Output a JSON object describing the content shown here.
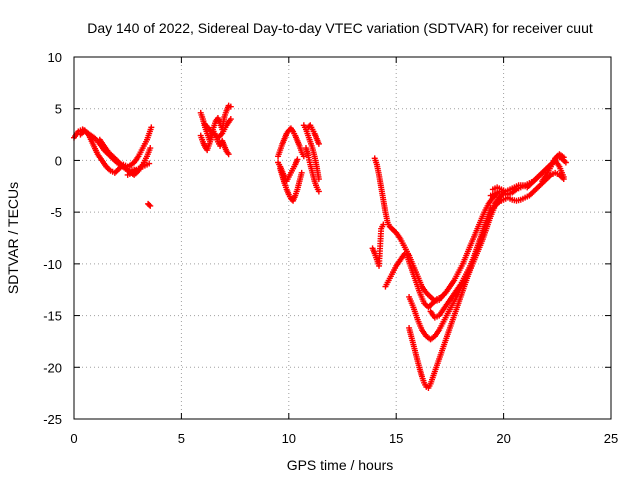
{
  "chart_data": {
    "type": "scatter",
    "title": "Day 140 of 2022, Sidereal Day-to-day VTEC variation (SDTVAR) for receiver cuut",
    "xlabel": "GPS time / hours",
    "ylabel": "SDTVAR / TECUs",
    "xlim": [
      0,
      25
    ],
    "ylim": [
      -25,
      10
    ],
    "xticks": [
      0,
      5,
      10,
      15,
      20,
      25
    ],
    "yticks": [
      -25,
      -20,
      -15,
      -10,
      -5,
      0,
      5,
      10
    ],
    "xtick_labels": [
      "0",
      "5",
      "10",
      "15",
      "20",
      "25"
    ],
    "ytick_labels": [
      "-25",
      "-20",
      "-15",
      "-10",
      "-5",
      "0",
      "5",
      "10"
    ],
    "grid": true,
    "legend": "none",
    "marker": "plus",
    "colors": {
      "series": "#ff0000",
      "grid": "#a0a0a0",
      "axes": "#000000"
    },
    "series": [
      {
        "x": [
          0.0,
          0.2,
          0.4,
          0.6,
          0.8,
          1.0,
          1.2,
          1.4,
          1.6,
          1.8,
          2.0,
          2.2,
          2.4,
          2.6,
          2.8
        ],
        "y": [
          2.2,
          2.8,
          3.0,
          2.7,
          2.4,
          2.1,
          1.6,
          1.0,
          0.6,
          0.2,
          -0.2,
          -0.5,
          -0.8,
          -1.0,
          -0.9
        ]
      },
      {
        "x": [
          0.3,
          0.5,
          0.7,
          0.9,
          1.1,
          1.3,
          1.5,
          1.7,
          1.9,
          2.1,
          2.3,
          2.5
        ],
        "y": [
          2.5,
          2.9,
          2.4,
          1.5,
          0.6,
          0.0,
          -0.6,
          -1.0,
          -1.2,
          -0.8,
          -0.4,
          -0.6
        ]
      },
      {
        "x": [
          1.2,
          1.4,
          1.6,
          1.8,
          2.0,
          2.2,
          2.4,
          2.6,
          2.8,
          3.0,
          3.2,
          3.4,
          3.55
        ],
        "y": [
          2.0,
          1.4,
          0.8,
          0.4,
          0.0,
          -0.4,
          -0.8,
          -1.1,
          -1.4,
          -1.0,
          -0.4,
          0.4,
          1.2
        ]
      },
      {
        "x": [
          2.6,
          2.8,
          3.0,
          3.2,
          3.4,
          3.5,
          3.6
        ],
        "y": [
          -0.5,
          -0.2,
          0.4,
          1.2,
          2.0,
          2.6,
          3.2
        ]
      },
      {
        "x": [
          2.5,
          2.7,
          2.9,
          3.1,
          3.3,
          3.5
        ],
        "y": [
          -1.4,
          -1.2,
          -0.9,
          -0.7,
          -0.5,
          -0.3
        ]
      },
      {
        "x": [
          3.45,
          3.55
        ],
        "y": [
          -4.2,
          -4.4
        ]
      },
      {
        "x": [
          5.9,
          6.0,
          6.1,
          6.2,
          6.3,
          6.4,
          6.5,
          6.6,
          6.7,
          6.8,
          6.9,
          7.0,
          7.1,
          7.2,
          7.3
        ],
        "y": [
          4.6,
          4.0,
          3.2,
          2.6,
          2.0,
          2.6,
          3.2,
          3.8,
          4.1,
          3.6,
          3.0,
          4.2,
          4.8,
          5.3,
          5.2
        ]
      },
      {
        "x": [
          5.9,
          6.0,
          6.1,
          6.2,
          6.3,
          6.4,
          6.5,
          6.6,
          6.7,
          6.8,
          6.9,
          7.0,
          7.1,
          7.2
        ],
        "y": [
          2.4,
          1.8,
          1.3,
          1.0,
          1.6,
          2.2,
          2.8,
          2.4,
          1.8,
          1.4,
          1.9,
          1.4,
          0.9,
          0.6
        ]
      },
      {
        "x": [
          6.1,
          6.3,
          6.5,
          6.7,
          6.9,
          7.1,
          7.3
        ],
        "y": [
          3.5,
          3.0,
          2.6,
          2.2,
          2.6,
          3.4,
          4.0
        ]
      },
      {
        "x": [
          9.5,
          9.6,
          9.7,
          9.8,
          9.9,
          10.0,
          10.1,
          10.2,
          10.3,
          10.4,
          10.5,
          10.6,
          10.7
        ],
        "y": [
          0.4,
          1.0,
          1.6,
          2.1,
          2.6,
          2.9,
          3.1,
          2.8,
          2.4,
          1.9,
          1.4,
          0.8,
          0.4
        ]
      },
      {
        "x": [
          9.6,
          9.7,
          9.8,
          9.9,
          10.0,
          10.1,
          10.2,
          10.3,
          10.4,
          10.5,
          10.6
        ],
        "y": [
          -0.8,
          -1.5,
          -2.2,
          -2.8,
          -3.3,
          -3.7,
          -3.9,
          -3.4,
          -2.8,
          -2.0,
          -1.2
        ]
      },
      {
        "x": [
          9.5,
          9.6,
          9.7,
          9.8,
          9.9,
          10.0,
          10.1,
          10.2,
          10.3,
          10.4
        ],
        "y": [
          -0.2,
          -0.6,
          -1.1,
          -1.6,
          -2.0,
          -1.6,
          -1.2,
          -0.8,
          -0.4,
          0.1
        ]
      },
      {
        "x": [
          10.7,
          10.8,
          10.9,
          11.0,
          11.1,
          11.2,
          11.3,
          11.4
        ],
        "y": [
          3.4,
          3.0,
          2.4,
          1.8,
          1.2,
          0.4,
          -0.6,
          -1.8
        ]
      },
      {
        "x": [
          10.8,
          10.9,
          11.0,
          11.1,
          11.2,
          11.3,
          11.4
        ],
        "y": [
          1.2,
          0.5,
          -0.4,
          -1.2,
          -2.0,
          -2.6,
          -3.0
        ]
      },
      {
        "x": [
          10.9,
          11.0,
          11.1,
          11.2,
          11.3,
          11.4
        ],
        "y": [
          3.2,
          3.4,
          3.0,
          2.6,
          2.1,
          1.6
        ]
      },
      {
        "x": [
          14.0,
          14.1,
          14.2,
          14.3,
          14.4,
          14.5,
          14.6,
          14.7,
          14.8,
          14.9,
          15.0,
          15.2,
          15.4,
          15.6,
          15.8,
          16.0,
          16.2,
          16.4,
          16.6,
          16.8,
          17.0,
          17.2
        ],
        "y": [
          0.2,
          -0.4,
          -1.4,
          -2.6,
          -3.8,
          -5.0,
          -6.0,
          -6.4,
          -6.6,
          -6.8,
          -7.0,
          -7.6,
          -8.4,
          -9.2,
          -10.2,
          -11.2,
          -12.2,
          -12.8,
          -13.2,
          -13.6,
          -13.5,
          -13.0
        ]
      },
      {
        "x": [
          13.9,
          14.0,
          14.1,
          14.2,
          14.3,
          14.4
        ],
        "y": [
          -8.5,
          -9.0,
          -9.6,
          -10.2,
          -6.6,
          -6.2
        ]
      },
      {
        "x": [
          14.5,
          14.6,
          14.7,
          14.8,
          14.9,
          15.0,
          15.1,
          15.2,
          15.3,
          15.4,
          15.5,
          15.6
        ],
        "y": [
          -12.2,
          -11.8,
          -11.4,
          -11.0,
          -10.6,
          -10.2,
          -9.9,
          -9.6,
          -9.3,
          -9.0,
          -9.0,
          -9.2
        ]
      },
      {
        "x": [
          15.5,
          15.7,
          15.9,
          16.1,
          16.3,
          16.5,
          16.7,
          16.9,
          17.1,
          17.3,
          17.5,
          17.7,
          17.9,
          18.1,
          18.3,
          18.5,
          18.7,
          18.9,
          19.1,
          19.3,
          19.5,
          19.7
        ],
        "y": [
          -9.2,
          -10.4,
          -11.6,
          -12.8,
          -13.8,
          -14.2,
          -13.8,
          -13.4,
          -13.2,
          -12.8,
          -12.2,
          -11.6,
          -10.8,
          -10.0,
          -9.0,
          -8.0,
          -7.0,
          -6.0,
          -5.0,
          -4.2,
          -3.6,
          -3.2
        ]
      },
      {
        "x": [
          15.6,
          15.8,
          16.0,
          16.2,
          16.4,
          16.6,
          16.8,
          17.0,
          17.2,
          17.4,
          17.6,
          17.8,
          18.0,
          18.2,
          18.4,
          18.6,
          18.8,
          19.0,
          19.2,
          19.4,
          19.6,
          19.8
        ],
        "y": [
          -13.2,
          -14.2,
          -15.4,
          -16.4,
          -17.0,
          -17.3,
          -17.0,
          -16.4,
          -15.6,
          -14.8,
          -14.0,
          -13.2,
          -12.4,
          -11.6,
          -10.8,
          -9.8,
          -8.8,
          -7.8,
          -6.6,
          -5.4,
          -4.4,
          -3.6
        ]
      },
      {
        "x": [
          15.6,
          15.7,
          15.8,
          15.9,
          16.0,
          16.1,
          16.2,
          16.3,
          16.4,
          16.5,
          16.6,
          16.7,
          16.8,
          16.9,
          17.0,
          17.2,
          17.4,
          17.6,
          17.8,
          18.0,
          18.2,
          18.4,
          18.6,
          18.8,
          19.0,
          19.2,
          19.4,
          19.6,
          19.8,
          20.0
        ],
        "y": [
          -16.2,
          -17.0,
          -17.8,
          -18.6,
          -19.4,
          -20.2,
          -20.9,
          -21.5,
          -21.9,
          -22.0,
          -21.6,
          -21.0,
          -20.4,
          -19.8,
          -19.2,
          -18.0,
          -16.8,
          -15.6,
          -14.4,
          -13.2,
          -12.0,
          -10.8,
          -9.6,
          -8.4,
          -7.2,
          -6.0,
          -5.0,
          -4.2,
          -3.6,
          -3.2
        ]
      },
      {
        "x": [
          16.6,
          16.8,
          17.0,
          17.2,
          17.4,
          17.6,
          17.8,
          18.0,
          18.2,
          18.4,
          18.6,
          18.8,
          19.0,
          19.2,
          19.4
        ],
        "y": [
          -14.6,
          -15.2,
          -15.0,
          -14.4,
          -13.8,
          -13.2,
          -12.6,
          -12.0,
          -11.2,
          -10.4,
          -9.4,
          -8.2,
          -7.0,
          -5.8,
          -4.6
        ]
      },
      {
        "x": [
          19.4,
          19.6,
          19.8,
          20.0,
          20.2,
          20.4,
          20.6,
          20.8,
          21.0,
          21.2,
          21.4,
          21.6,
          21.8,
          22.0,
          22.2,
          22.4,
          22.6,
          22.8
        ],
        "y": [
          -3.4,
          -3.2,
          -3.0,
          -3.1,
          -3.3,
          -3.1,
          -2.8,
          -2.6,
          -2.4,
          -2.2,
          -2.0,
          -1.6,
          -1.2,
          -0.8,
          -0.4,
          0.0,
          -0.6,
          -1.6
        ]
      },
      {
        "x": [
          19.6,
          19.8,
          20.0,
          20.2,
          20.4,
          20.6,
          20.8,
          21.0,
          21.2,
          21.4,
          21.6,
          21.8,
          22.0,
          22.2,
          22.4,
          22.6,
          22.8
        ],
        "y": [
          -4.4,
          -4.0,
          -3.8,
          -3.6,
          -3.8,
          -3.9,
          -3.8,
          -3.6,
          -3.4,
          -3.0,
          -2.6,
          -2.2,
          -1.8,
          -1.4,
          -1.2,
          -1.4,
          -1.8
        ]
      },
      {
        "x": [
          19.5,
          19.7,
          19.9,
          20.1,
          20.3,
          20.5,
          20.7,
          20.9,
          21.1,
          21.3,
          21.5,
          21.7,
          21.9,
          22.1,
          22.3,
          22.5,
          22.7,
          22.9
        ],
        "y": [
          -2.8,
          -2.6,
          -2.8,
          -3.0,
          -2.8,
          -2.6,
          -2.4,
          -2.4,
          -2.6,
          -2.2,
          -1.8,
          -1.4,
          -1.0,
          -0.6,
          -0.2,
          0.4,
          0.2,
          -0.2
        ]
      },
      {
        "x": [
          21.8,
          22.0,
          22.2,
          22.4,
          22.6,
          22.8
        ],
        "y": [
          -2.0,
          -1.4,
          -0.6,
          0.2,
          0.6,
          0.3
        ]
      }
    ]
  }
}
